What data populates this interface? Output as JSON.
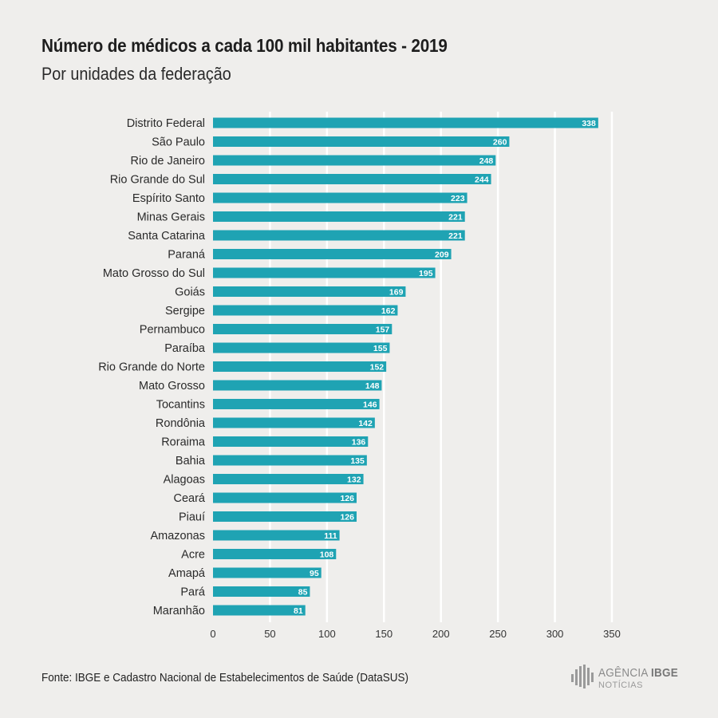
{
  "header": {
    "title": "Número de médicos a cada 100 mil habitantes - 2019",
    "subtitle": "Por unidades da federação"
  },
  "footer": {
    "source": "Fonte: IBGE e Cadastro Nacional de Estabelecimentos de Saúde (DataSUS)"
  },
  "logo": {
    "name_part1": "AGÊNCIA",
    "name_part2": "IBGE",
    "tagline": "NOTÍCIAS"
  },
  "colors": {
    "bar": "#1fa3b3",
    "gridline": "#ffffff",
    "background": "#efeeec"
  },
  "chart_data": {
    "type": "bar",
    "orientation": "horizontal",
    "title": "Número de médicos a cada 100 mil habitantes - 2019",
    "subtitle": "Por unidades da federação",
    "xlabel": "",
    "ylabel": "",
    "xlim": [
      0,
      350
    ],
    "xticks": [
      0,
      50,
      100,
      150,
      200,
      250,
      300,
      350
    ],
    "grid": true,
    "legend": "none",
    "categories": [
      "Distrito Federal",
      "São Paulo",
      "Rio de Janeiro",
      "Rio Grande do Sul",
      "Espírito Santo",
      "Minas Gerais",
      "Santa Catarina",
      "Paraná",
      "Mato Grosso do Sul",
      "Goiás",
      "Sergipe",
      "Pernambuco",
      "Paraíba",
      "Rio Grande do Norte",
      "Mato Grosso",
      "Tocantins",
      "Rondônia",
      "Roraima",
      "Bahia",
      "Alagoas",
      "Ceará",
      "Piauí",
      "Amazonas",
      "Acre",
      "Amapá",
      "Pará",
      "Maranhão"
    ],
    "values": [
      338,
      260,
      248,
      244,
      223,
      221,
      221,
      209,
      195,
      169,
      162,
      157,
      155,
      152,
      148,
      146,
      142,
      136,
      135,
      132,
      126,
      126,
      111,
      108,
      95,
      85,
      81
    ]
  }
}
